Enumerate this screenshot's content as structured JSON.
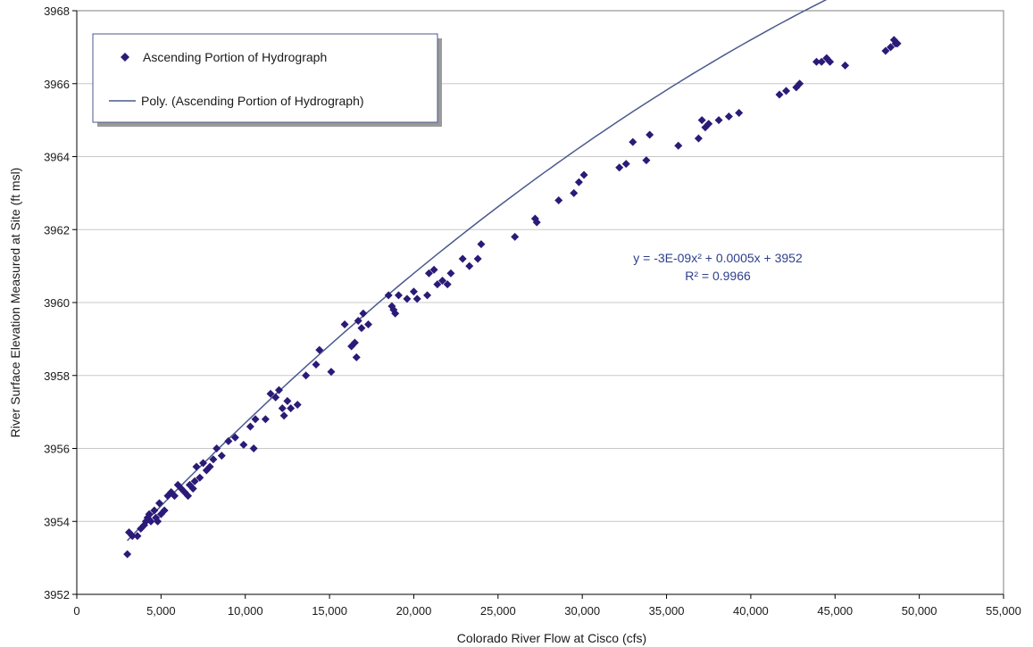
{
  "chart_data": {
    "type": "scatter",
    "xlabel": "Colorado River Flow  at Cisco (cfs)",
    "ylabel": "River Surface Elevation Measured at Site  (ft msl)",
    "xlim": [
      0,
      55000
    ],
    "ylim": [
      3952,
      3968
    ],
    "x_ticks": [
      0,
      5000,
      10000,
      15000,
      20000,
      25000,
      30000,
      35000,
      40000,
      45000,
      50000,
      55000
    ],
    "x_tick_labels": [
      "0",
      "5,000",
      "10,000",
      "15,000",
      "20,000",
      "25,000",
      "30,000",
      "35,000",
      "40,000",
      "45,000",
      "50,000",
      "55,000"
    ],
    "y_ticks": [
      3952,
      3954,
      3956,
      3958,
      3960,
      3962,
      3964,
      3966,
      3968
    ],
    "y_tick_labels": [
      "3952",
      "3954",
      "3956",
      "3958",
      "3960",
      "3962",
      "3964",
      "3966",
      "3968"
    ],
    "grid": "horizontal",
    "legend_position": "top-left",
    "colors": {
      "marker": "#2b1a78",
      "trendline": "#4a5a8c",
      "grid": "#c8c8c8"
    },
    "series": [
      {
        "name": "Ascending Portion of Hydrograph",
        "marker": "diamond",
        "points": [
          [
            3000,
            3953.1
          ],
          [
            3100,
            3953.7
          ],
          [
            3300,
            3953.6
          ],
          [
            3600,
            3953.6
          ],
          [
            3800,
            3953.8
          ],
          [
            4000,
            3953.9
          ],
          [
            4100,
            3954.0
          ],
          [
            4200,
            3954.1
          ],
          [
            4300,
            3954.2
          ],
          [
            4400,
            3954.0
          ],
          [
            4600,
            3954.3
          ],
          [
            4700,
            3954.1
          ],
          [
            4800,
            3954.0
          ],
          [
            4900,
            3954.5
          ],
          [
            5000,
            3954.2
          ],
          [
            5200,
            3954.3
          ],
          [
            5400,
            3954.7
          ],
          [
            5600,
            3954.8
          ],
          [
            5800,
            3954.7
          ],
          [
            6000,
            3955.0
          ],
          [
            6200,
            3954.9
          ],
          [
            6400,
            3954.8
          ],
          [
            6600,
            3954.7
          ],
          [
            6700,
            3955.0
          ],
          [
            6900,
            3954.9
          ],
          [
            7000,
            3955.1
          ],
          [
            7100,
            3955.5
          ],
          [
            7300,
            3955.2
          ],
          [
            7500,
            3955.6
          ],
          [
            7700,
            3955.4
          ],
          [
            7900,
            3955.5
          ],
          [
            8100,
            3955.7
          ],
          [
            8300,
            3956.0
          ],
          [
            8600,
            3955.8
          ],
          [
            9000,
            3956.2
          ],
          [
            9400,
            3956.3
          ],
          [
            9900,
            3956.1
          ],
          [
            10300,
            3956.6
          ],
          [
            10500,
            3956.0
          ],
          [
            10600,
            3956.8
          ],
          [
            11200,
            3956.8
          ],
          [
            11500,
            3957.5
          ],
          [
            11800,
            3957.4
          ],
          [
            12000,
            3957.6
          ],
          [
            12200,
            3957.1
          ],
          [
            12300,
            3956.9
          ],
          [
            12500,
            3957.3
          ],
          [
            12700,
            3957.1
          ],
          [
            13100,
            3957.2
          ],
          [
            13600,
            3958.0
          ],
          [
            14200,
            3958.3
          ],
          [
            14400,
            3958.7
          ],
          [
            15100,
            3958.1
          ],
          [
            15900,
            3959.4
          ],
          [
            16300,
            3958.8
          ],
          [
            16500,
            3958.9
          ],
          [
            16600,
            3958.5
          ],
          [
            16700,
            3959.5
          ],
          [
            16900,
            3959.3
          ],
          [
            17000,
            3959.7
          ],
          [
            17300,
            3959.4
          ],
          [
            18500,
            3960.2
          ],
          [
            18700,
            3959.9
          ],
          [
            18800,
            3959.8
          ],
          [
            18900,
            3959.7
          ],
          [
            19100,
            3960.2
          ],
          [
            19600,
            3960.1
          ],
          [
            20000,
            3960.3
          ],
          [
            20200,
            3960.1
          ],
          [
            20800,
            3960.2
          ],
          [
            20900,
            3960.8
          ],
          [
            21200,
            3960.9
          ],
          [
            21400,
            3960.5
          ],
          [
            21700,
            3960.6
          ],
          [
            22000,
            3960.5
          ],
          [
            22200,
            3960.8
          ],
          [
            22900,
            3961.2
          ],
          [
            23300,
            3961.0
          ],
          [
            23800,
            3961.2
          ],
          [
            24000,
            3961.6
          ],
          [
            26000,
            3961.8
          ],
          [
            27200,
            3962.3
          ],
          [
            27300,
            3962.2
          ],
          [
            28600,
            3962.8
          ],
          [
            29500,
            3963.0
          ],
          [
            29800,
            3963.3
          ],
          [
            30100,
            3963.5
          ],
          [
            32200,
            3963.7
          ],
          [
            32600,
            3963.8
          ],
          [
            33000,
            3964.4
          ],
          [
            33800,
            3963.9
          ],
          [
            34000,
            3964.6
          ],
          [
            35700,
            3964.3
          ],
          [
            36900,
            3964.5
          ],
          [
            37100,
            3965.0
          ],
          [
            37300,
            3964.8
          ],
          [
            37500,
            3964.9
          ],
          [
            38100,
            3965.0
          ],
          [
            38700,
            3965.1
          ],
          [
            39300,
            3965.2
          ],
          [
            41700,
            3965.7
          ],
          [
            42100,
            3965.8
          ],
          [
            42700,
            3965.9
          ],
          [
            42900,
            3966.0
          ],
          [
            43900,
            3966.6
          ],
          [
            44200,
            3966.6
          ],
          [
            44500,
            3966.7
          ],
          [
            44700,
            3966.6
          ],
          [
            45600,
            3966.5
          ],
          [
            48000,
            3966.9
          ],
          [
            48300,
            3967.0
          ],
          [
            48500,
            3967.2
          ],
          [
            48600,
            3967.1
          ],
          [
            48700,
            3967.1
          ]
        ]
      },
      {
        "name": "Poly. (Ascending Portion of Hydrograph)",
        "line": "trendline",
        "coefficients": {
          "a": -3e-09,
          "b": 0.0005,
          "c": 3952
        },
        "x_range": [
          3000,
          48700
        ]
      }
    ],
    "annotations": {
      "equation": "y = -3E-09x² + 0.0005x + 3952",
      "r_squared": "R² = 0.9966"
    }
  }
}
